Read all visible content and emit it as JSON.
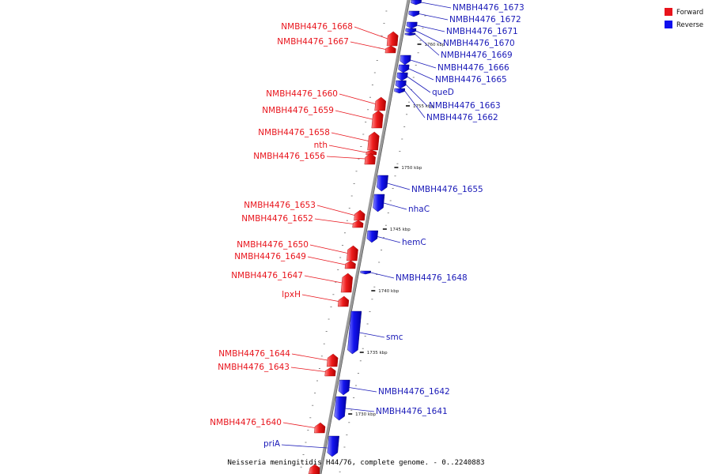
{
  "caption": "Neisseria meningitidis H44/76, complete genome. - 0..2240883",
  "legend": [
    {
      "label": "Forward",
      "color": "#e8141c"
    },
    {
      "label": "Reverse",
      "color": "#1010ee"
    }
  ],
  "ticks": [
    "1760 kbp",
    "1755 kbp",
    "1750 kbp",
    "1745 kbp",
    "1740 kbp",
    "1735 kbp",
    "1730 kbp"
  ],
  "forward_genes": [
    "NMBH4476_1668",
    "NMBH4476_1667",
    "NMBH4476_1660",
    "NMBH4476_1659",
    "NMBH4476_1658",
    "nth",
    "NMBH4476_1656",
    "NMBH4476_1653",
    "NMBH4476_1652",
    "NMBH4476_1650",
    "NMBH4476_1649",
    "NMBH4476_1647",
    "lpxH",
    "NMBH4476_1644",
    "NMBH4476_1643",
    "NMBH4476_1640"
  ],
  "reverse_genes": [
    "NMBH4476_1673",
    "NMBH4476_1672",
    "NMBH4476_1671",
    "NMBH4476_1670",
    "NMBH4476_1669",
    "NMBH4476_1666",
    "NMBH4476_1665",
    "queD",
    "NMBH4476_1663",
    "NMBH4476_1662",
    "NMBH4476_1655",
    "nhaC",
    "hemC",
    "NMBH4476_1648",
    "smc",
    "NMBH4476_1642",
    "NMBH4476_1641",
    "priA"
  ]
}
